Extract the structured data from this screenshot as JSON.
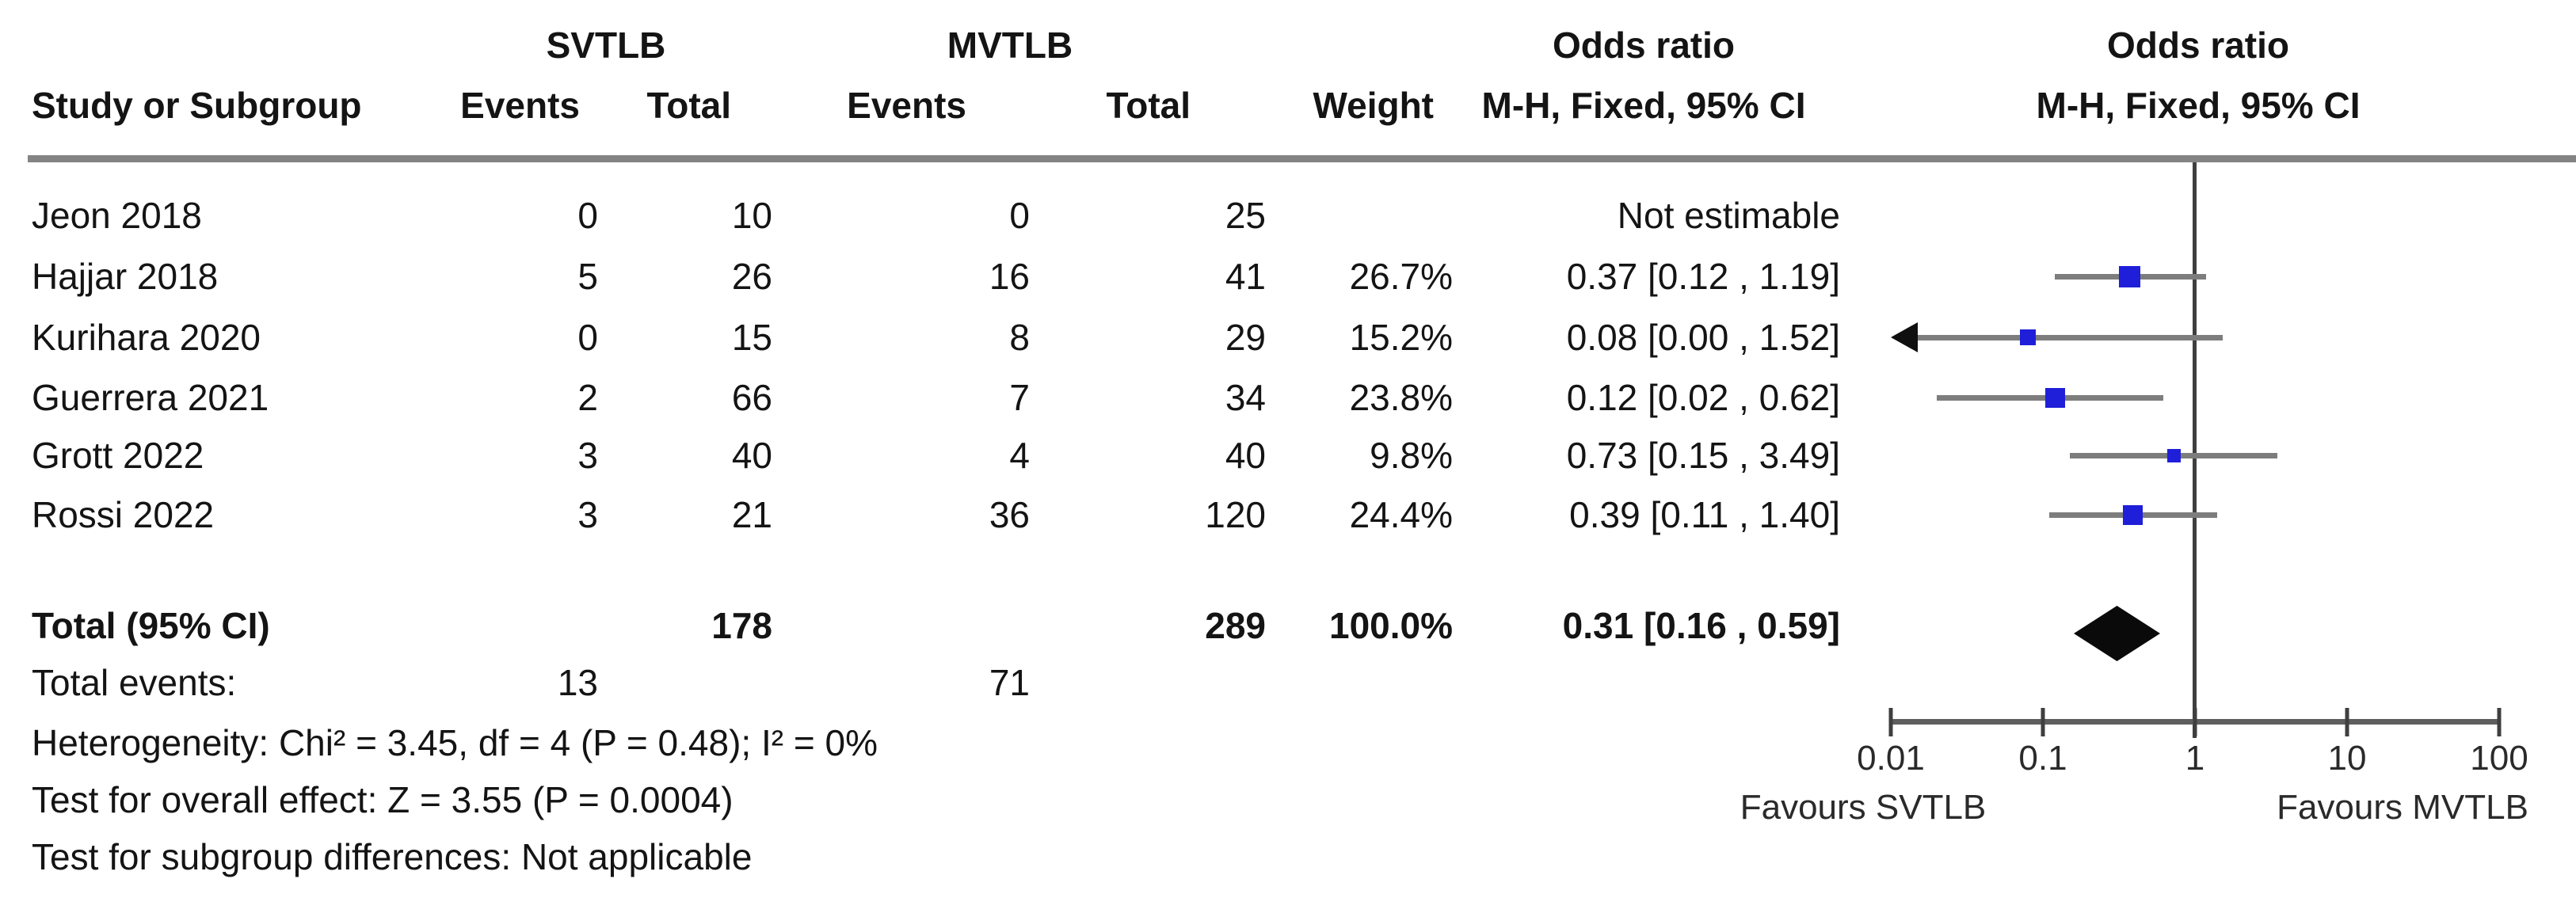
{
  "header": {
    "group1_label": "SVTLB",
    "group2_label": "MVTLB",
    "col_study": "Study or Subgroup",
    "col_events": "Events",
    "col_total": "Total",
    "col_weight": "Weight",
    "or_text_col": {
      "line1": "Odds ratio",
      "line2": "M-H, Fixed, 95% CI"
    },
    "or_plot_col": {
      "line1": "Odds ratio",
      "line2": "M-H, Fixed, 95% CI"
    }
  },
  "chart_data": {
    "type": "forest",
    "effect_measure": "Odds ratio",
    "method": "M-H, Fixed, 95% CI",
    "x_scale": "log10",
    "x_range": [
      0.01,
      100
    ],
    "null_line": 1,
    "x_ticks": [
      "0.01",
      "0.1",
      "1",
      "10",
      "100"
    ],
    "favours_left": "Favours SVTLB",
    "favours_right": "Favours MVTLB",
    "marker_color": "#1f1fd9",
    "studies": [
      {
        "name": "Jeon 2018",
        "events1": 0,
        "total1": 10,
        "events2": 0,
        "total2": 25,
        "weight": "",
        "or_label": "Not estimable",
        "or": null,
        "ci_low": null,
        "ci_high": null,
        "arrow_low": false
      },
      {
        "name": "Hajjar 2018",
        "events1": 5,
        "total1": 26,
        "events2": 16,
        "total2": 41,
        "weight": "26.7%",
        "or_label": "0.37 [0.12 , 1.19]",
        "or": 0.37,
        "ci_low": 0.12,
        "ci_high": 1.19,
        "arrow_low": false
      },
      {
        "name": "Kurihara 2020",
        "events1": 0,
        "total1": 15,
        "events2": 8,
        "total2": 29,
        "weight": "15.2%",
        "or_label": "0.08 [0.00 , 1.52]",
        "or": 0.08,
        "ci_low": 0.0,
        "ci_high": 1.52,
        "arrow_low": true
      },
      {
        "name": "Guerrera 2021",
        "events1": 2,
        "total1": 66,
        "events2": 7,
        "total2": 34,
        "weight": "23.8%",
        "or_label": "0.12 [0.02 , 0.62]",
        "or": 0.12,
        "ci_low": 0.02,
        "ci_high": 0.62,
        "arrow_low": false
      },
      {
        "name": "Grott 2022",
        "events1": 3,
        "total1": 40,
        "events2": 4,
        "total2": 40,
        "weight": "9.8%",
        "or_label": "0.73 [0.15 , 3.49]",
        "or": 0.73,
        "ci_low": 0.15,
        "ci_high": 3.49,
        "arrow_low": false
      },
      {
        "name": "Rossi 2022",
        "events1": 3,
        "total1": 21,
        "events2": 36,
        "total2": 120,
        "weight": "24.4%",
        "or_label": "0.39 [0.11 , 1.40]",
        "or": 0.39,
        "ci_low": 0.11,
        "ci_high": 1.4,
        "arrow_low": false
      }
    ],
    "total": {
      "label": "Total (95% CI)",
      "total1": 178,
      "total2": 289,
      "weight": "100.0%",
      "or_label": "0.31 [0.16 , 0.59]",
      "or": 0.31,
      "ci_low": 0.16,
      "ci_high": 0.59
    },
    "total_events": {
      "label": "Total events:",
      "group1": 13,
      "group2": 71
    },
    "footer": [
      "Heterogeneity: Chi² = 3.45, df = 4 (P = 0.48); I² = 0%",
      "Test for overall effect: Z = 3.55 (P = 0.0004)",
      "Test for subgroup differences: Not applicable"
    ]
  }
}
